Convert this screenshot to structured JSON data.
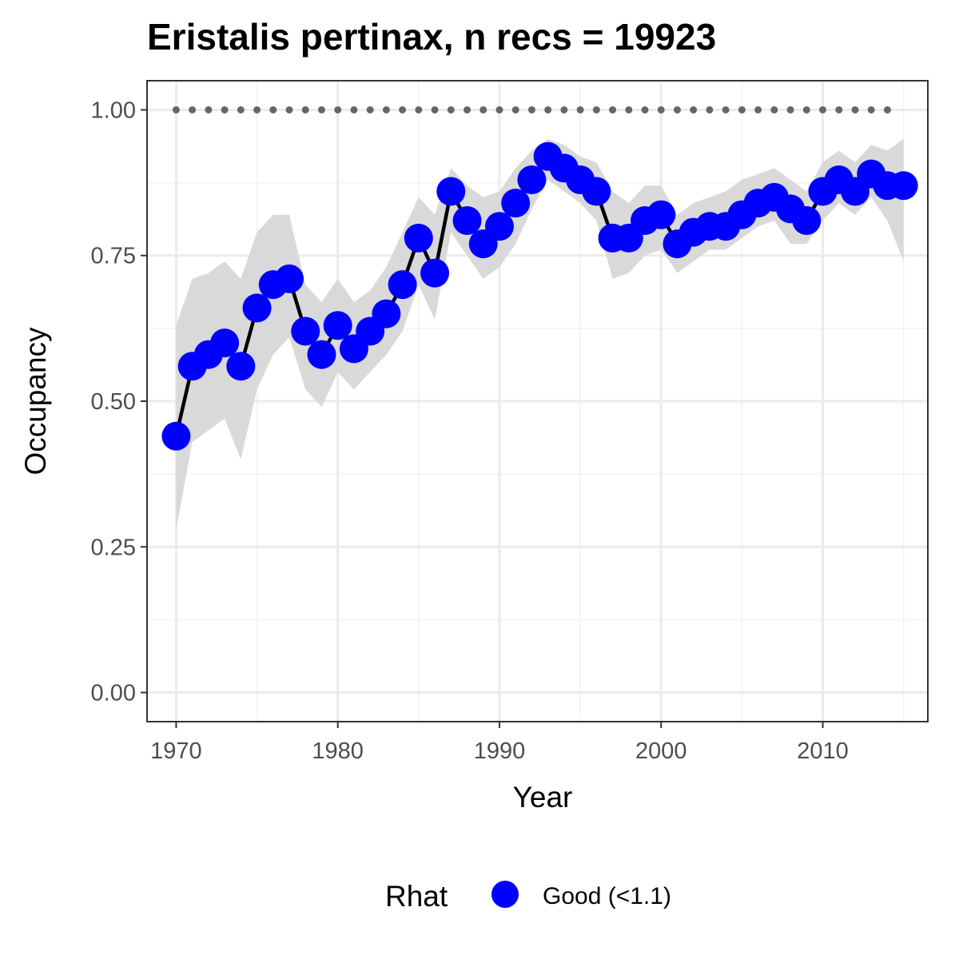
{
  "chart_data": {
    "type": "line",
    "title": "Eristalis pertinax, n recs = 19923",
    "xlabel": "Year",
    "ylabel": "Occupancy",
    "xlim": [
      1968.2,
      2016.5
    ],
    "ylim": [
      -0.05,
      1.05
    ],
    "x_ticks": [
      1970,
      1980,
      1990,
      2000,
      2010
    ],
    "x_tick_labels": [
      "1970",
      "1980",
      "1990",
      "2000",
      "2010"
    ],
    "y_ticks": [
      0,
      0.25,
      0.5,
      0.75,
      1.0
    ],
    "y_tick_labels": [
      "0.00",
      "0.25",
      "0.50",
      "0.75",
      "1.00"
    ],
    "grid": true,
    "x": [
      1970,
      1971,
      1972,
      1973,
      1974,
      1975,
      1976,
      1977,
      1978,
      1979,
      1980,
      1981,
      1982,
      1983,
      1984,
      1985,
      1986,
      1987,
      1988,
      1989,
      1990,
      1991,
      1992,
      1993,
      1994,
      1995,
      1996,
      1997,
      1998,
      1999,
      2000,
      2001,
      2002,
      2003,
      2004,
      2005,
      2006,
      2007,
      2008,
      2009,
      2010,
      2011,
      2012,
      2013,
      2014,
      2015
    ],
    "series": [
      {
        "name": "Good (<1.1)",
        "color": "#0000ff",
        "line_color": "#000000",
        "values": [
          0.44,
          0.56,
          0.58,
          0.6,
          0.56,
          0.66,
          0.7,
          0.71,
          0.62,
          0.58,
          0.63,
          0.59,
          0.62,
          0.65,
          0.7,
          0.78,
          0.72,
          0.86,
          0.81,
          0.77,
          0.8,
          0.84,
          0.88,
          0.92,
          0.9,
          0.88,
          0.86,
          0.78,
          0.78,
          0.81,
          0.82,
          0.77,
          0.79,
          0.8,
          0.8,
          0.82,
          0.84,
          0.85,
          0.83,
          0.81,
          0.86,
          0.88,
          0.86,
          0.89,
          0.87,
          0.87
        ],
        "lower": [
          0.28,
          0.43,
          0.45,
          0.47,
          0.4,
          0.52,
          0.58,
          0.61,
          0.52,
          0.49,
          0.55,
          0.52,
          0.55,
          0.58,
          0.62,
          0.7,
          0.64,
          0.79,
          0.75,
          0.71,
          0.73,
          0.77,
          0.83,
          0.88,
          0.86,
          0.84,
          0.81,
          0.71,
          0.72,
          0.75,
          0.76,
          0.72,
          0.74,
          0.76,
          0.76,
          0.78,
          0.8,
          0.81,
          0.77,
          0.77,
          0.81,
          0.84,
          0.82,
          0.85,
          0.81,
          0.74
        ],
        "upper": [
          0.63,
          0.71,
          0.72,
          0.74,
          0.71,
          0.79,
          0.82,
          0.82,
          0.7,
          0.67,
          0.71,
          0.67,
          0.69,
          0.73,
          0.79,
          0.85,
          0.82,
          0.9,
          0.87,
          0.85,
          0.86,
          0.9,
          0.93,
          0.95,
          0.94,
          0.92,
          0.91,
          0.86,
          0.84,
          0.87,
          0.87,
          0.82,
          0.84,
          0.85,
          0.86,
          0.88,
          0.89,
          0.9,
          0.88,
          0.86,
          0.91,
          0.93,
          0.91,
          0.94,
          0.93,
          0.95
        ]
      }
    ],
    "reference_line": {
      "y": 1.0,
      "style": "dotted",
      "color": "#666666",
      "x_range": [
        1970,
        2014
      ]
    },
    "ribbon_color": "#d9d9d9",
    "legend": {
      "title": "Rhat",
      "entries": [
        "Good (<1.1)"
      ],
      "position": "bottom"
    }
  }
}
